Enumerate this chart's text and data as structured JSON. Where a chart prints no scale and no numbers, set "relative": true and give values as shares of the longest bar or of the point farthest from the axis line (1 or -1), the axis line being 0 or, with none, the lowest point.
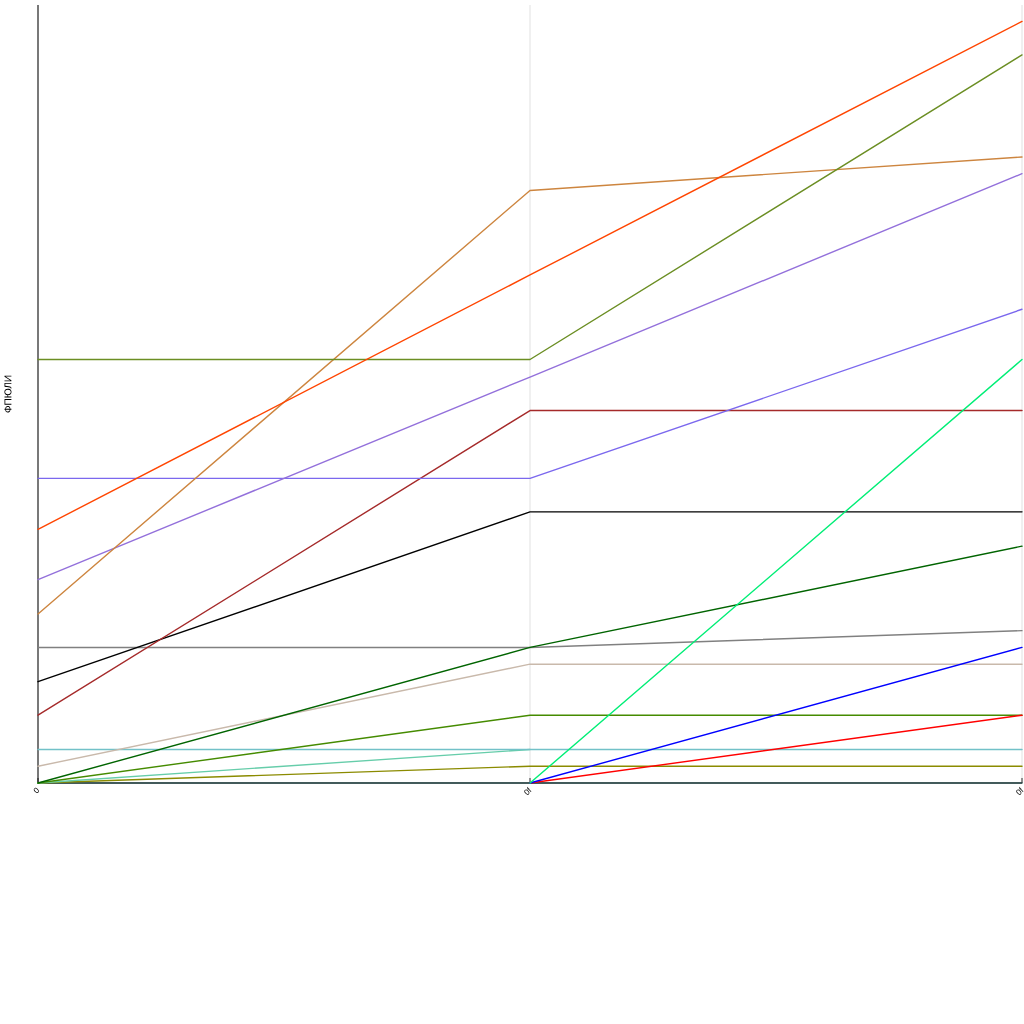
{
  "chart_data": {
    "type": "line",
    "relative": true,
    "ylabel": "ФПЮЛИ",
    "categories": [
      "0",
      "0f",
      "0f"
    ],
    "grid": "x",
    "series": [
      {
        "color": "#2f4f4f",
        "values": [
          0,
          0,
          0
        ]
      },
      {
        "color": "#8b8b00",
        "values": [
          0,
          0.022,
          0.022
        ]
      },
      {
        "color": "#66cdaa",
        "values": [
          0,
          0.044,
          null
        ]
      },
      {
        "color": "#72c1c8",
        "values": [
          0.044,
          0.044,
          0.044
        ]
      },
      {
        "color": "#458b00",
        "values": [
          0,
          0.089,
          0.089
        ]
      },
      {
        "color": "#ff0000",
        "values": [
          null,
          0,
          0.089
        ]
      },
      {
        "color": "#c9b9ab",
        "values": [
          0.022,
          0.156,
          0.156
        ]
      },
      {
        "color": "#808080",
        "values": [
          0.178,
          0.178,
          0.2
        ]
      },
      {
        "color": "#006400",
        "values": [
          0,
          0.178,
          0.311
        ]
      },
      {
        "color": "#0000ff",
        "values": [
          null,
          0,
          0.178
        ]
      },
      {
        "color": "#000000",
        "values": [
          0.133,
          0.356,
          0.356
        ]
      },
      {
        "color": "#a52a2a",
        "values": [
          0.089,
          0.489,
          0.489
        ]
      },
      {
        "color": "#7b68ee",
        "values": [
          0.4,
          0.4,
          0.622
        ]
      },
      {
        "color": "#9370db",
        "values": [
          0.267,
          0.533,
          0.8
        ]
      },
      {
        "color": "#cd853f",
        "values": [
          0.222,
          0.778,
          0.822
        ]
      },
      {
        "color": "#6b8e23",
        "values": [
          0.556,
          0.556,
          0.956
        ]
      },
      {
        "color": "#ff4500",
        "values": [
          0.333,
          0.667,
          1
        ]
      },
      {
        "color": "#00ee76",
        "values": [
          null,
          0,
          0.556
        ]
      }
    ]
  }
}
